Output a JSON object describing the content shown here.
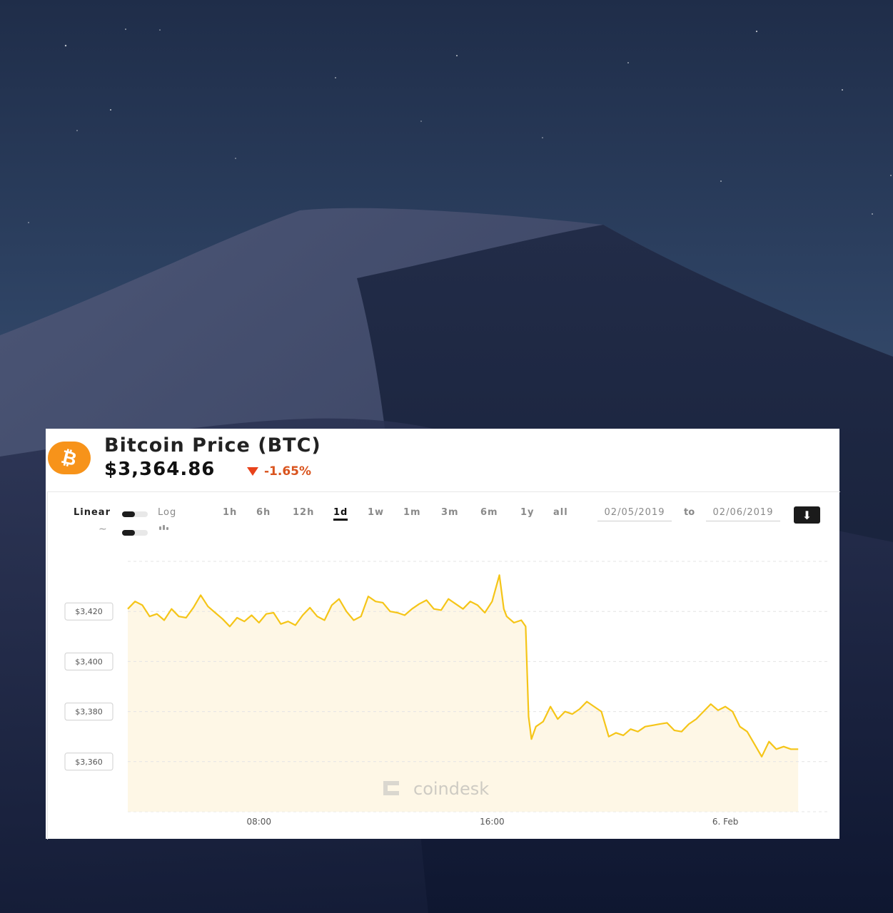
{
  "header": {
    "title": "Bitcoin Price (BTC)",
    "price": "$3,364.86",
    "change": "-1.65%",
    "logo_glyph": "₿",
    "brand_color": "#f7931a",
    "negative_color": "#d9541e"
  },
  "controls": {
    "scale_left": "Linear",
    "scale_right": "Log",
    "line_icon": "∼",
    "ranges": [
      "1h",
      "6h",
      "12h",
      "1d",
      "1w",
      "1m",
      "3m",
      "6m",
      "1y",
      "all"
    ],
    "active_range": "1d",
    "date_from": "02/05/2019",
    "date_to_label": "to",
    "date_to": "02/06/2019",
    "download_icon": "⬇"
  },
  "chart_data": {
    "type": "area",
    "watermark": "coindesk",
    "line_color": "#f5c518",
    "fill_color": "#fdf4de",
    "y_ticks": [
      "$3,360",
      "$3,380",
      "$3,400",
      "$3,420"
    ],
    "y_tick_values": [
      3360,
      3380,
      3400,
      3420
    ],
    "ylim": [
      3340,
      3440
    ],
    "x_ticks": [
      "08:00",
      "16:00",
      "6. Feb"
    ],
    "x_tick_hours": [
      8,
      16,
      24
    ],
    "xlim_hours": [
      3.5,
      27.5
    ],
    "grid": true,
    "points": [
      [
        3.5,
        3421.0
      ],
      [
        3.75,
        3424.0
      ],
      [
        4.0,
        3422.5
      ],
      [
        4.25,
        3418.0
      ],
      [
        4.5,
        3419.0
      ],
      [
        4.75,
        3416.5
      ],
      [
        5.0,
        3421.0
      ],
      [
        5.25,
        3418.0
      ],
      [
        5.5,
        3417.5
      ],
      [
        5.75,
        3421.5
      ],
      [
        6.0,
        3426.5
      ],
      [
        6.25,
        3422.0
      ],
      [
        6.5,
        3419.5
      ],
      [
        6.75,
        3417.0
      ],
      [
        7.0,
        3414.0
      ],
      [
        7.25,
        3417.5
      ],
      [
        7.5,
        3416.0
      ],
      [
        7.75,
        3418.5
      ],
      [
        8.0,
        3415.5
      ],
      [
        8.25,
        3419.0
      ],
      [
        8.5,
        3419.5
      ],
      [
        8.75,
        3415.0
      ],
      [
        9.0,
        3416.0
      ],
      [
        9.25,
        3414.5
      ],
      [
        9.5,
        3418.5
      ],
      [
        9.75,
        3421.5
      ],
      [
        10.0,
        3418.0
      ],
      [
        10.25,
        3416.5
      ],
      [
        10.5,
        3422.5
      ],
      [
        10.75,
        3425.0
      ],
      [
        11.0,
        3420.0
      ],
      [
        11.25,
        3416.5
      ],
      [
        11.5,
        3418.0
      ],
      [
        11.75,
        3426.0
      ],
      [
        12.0,
        3424.0
      ],
      [
        12.25,
        3423.5
      ],
      [
        12.5,
        3420.0
      ],
      [
        12.75,
        3419.5
      ],
      [
        13.0,
        3418.5
      ],
      [
        13.25,
        3421.0
      ],
      [
        13.5,
        3423.0
      ],
      [
        13.75,
        3424.5
      ],
      [
        14.0,
        3421.0
      ],
      [
        14.25,
        3420.5
      ],
      [
        14.5,
        3425.0
      ],
      [
        14.75,
        3423.0
      ],
      [
        15.0,
        3421.0
      ],
      [
        15.25,
        3424.0
      ],
      [
        15.5,
        3422.5
      ],
      [
        15.75,
        3419.5
      ],
      [
        16.0,
        3424.0
      ],
      [
        16.25,
        3434.5
      ],
      [
        16.4,
        3421.0
      ],
      [
        16.5,
        3418.0
      ],
      [
        16.75,
        3415.5
      ],
      [
        17.0,
        3416.5
      ],
      [
        17.15,
        3414.0
      ],
      [
        17.25,
        3378.0
      ],
      [
        17.35,
        3369.0
      ],
      [
        17.5,
        3374.0
      ],
      [
        17.75,
        3376.0
      ],
      [
        18.0,
        3382.0
      ],
      [
        18.25,
        3377.0
      ],
      [
        18.5,
        3380.0
      ],
      [
        18.75,
        3379.0
      ],
      [
        19.0,
        3381.0
      ],
      [
        19.25,
        3384.0
      ],
      [
        19.5,
        3382.0
      ],
      [
        19.75,
        3380.0
      ],
      [
        20.0,
        3370.0
      ],
      [
        20.25,
        3371.5
      ],
      [
        20.5,
        3370.5
      ],
      [
        20.75,
        3373.0
      ],
      [
        21.0,
        3372.0
      ],
      [
        21.25,
        3374.0
      ],
      [
        21.5,
        3374.5
      ],
      [
        21.75,
        3375.0
      ],
      [
        22.0,
        3375.5
      ],
      [
        22.25,
        3372.5
      ],
      [
        22.5,
        3372.0
      ],
      [
        22.75,
        3375.0
      ],
      [
        23.0,
        3377.0
      ],
      [
        23.25,
        3380.0
      ],
      [
        23.5,
        3383.0
      ],
      [
        23.75,
        3380.5
      ],
      [
        24.0,
        3382.0
      ],
      [
        24.25,
        3380.0
      ],
      [
        24.5,
        3374.0
      ],
      [
        24.75,
        3372.0
      ],
      [
        25.0,
        3367.0
      ],
      [
        25.25,
        3362.0
      ],
      [
        25.5,
        3368.0
      ],
      [
        25.75,
        3365.0
      ],
      [
        26.0,
        3366.0
      ],
      [
        26.25,
        3365.0
      ],
      [
        26.5,
        3365.0
      ]
    ]
  }
}
